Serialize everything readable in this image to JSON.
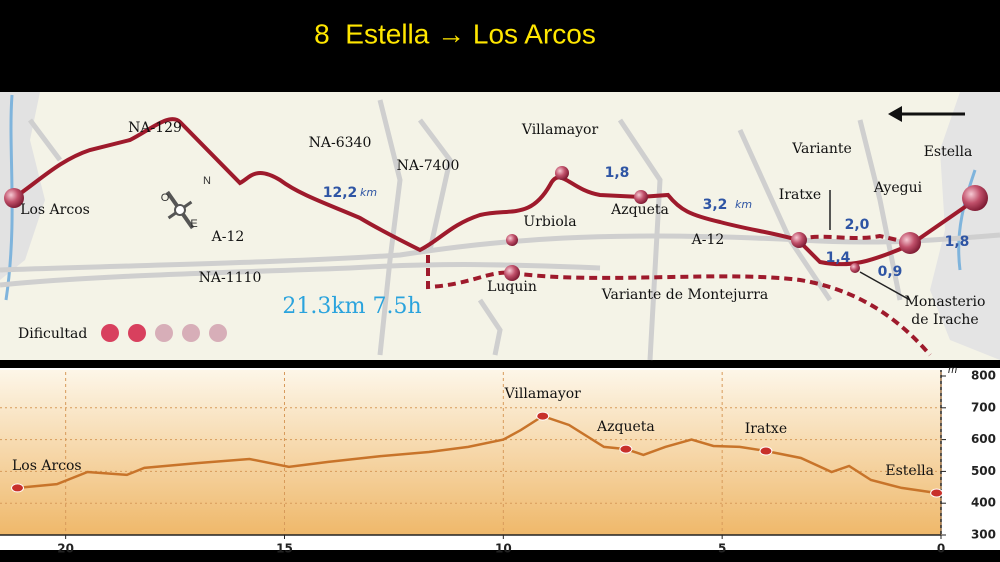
{
  "header": {
    "title": "8  Estella → Los Arcos"
  },
  "map": {
    "labels": [
      "NA-129",
      "NA-6340",
      "NA-7400",
      "Villamayor",
      "Variante",
      "Estella",
      "Los Arcos",
      "A-12",
      "Urbiola",
      "Azqueta",
      "A-12",
      "Iratxe",
      "Ayegui",
      "NA-1110",
      "Luquin",
      "Variante de Montejurra",
      "Monasterio",
      "de Irache"
    ],
    "distances": [
      {
        "text": "12,2",
        "unit": "km"
      },
      {
        "text": "1,8"
      },
      {
        "text": "3,2",
        "unit": "km"
      },
      {
        "text": "2,0"
      },
      {
        "text": "1,8"
      },
      {
        "text": "1,4"
      },
      {
        "text": "0,9"
      }
    ],
    "summary": "21.3km 7.5h",
    "difficulty_label": "Dificultad",
    "compass": [
      "N",
      "O",
      "E"
    ]
  },
  "chart_data": {
    "type": "line",
    "color": "#c8742a",
    "y_unit": "m",
    "x": [
      21.1,
      20.2,
      19.5,
      18.6,
      18.2,
      17.0,
      15.8,
      14.9,
      14.0,
      12.8,
      11.7,
      10.8,
      10.0,
      9.6,
      9.1,
      8.5,
      7.7,
      7.2,
      6.8,
      6.3,
      5.7,
      5.2,
      4.6,
      4.0,
      3.2,
      2.5,
      2.1,
      1.6,
      0.9,
      0.1
    ],
    "values": [
      448,
      460,
      498,
      489,
      511,
      526,
      539,
      514,
      530,
      548,
      561,
      577,
      600,
      630,
      674,
      646,
      577,
      570,
      552,
      577,
      600,
      580,
      577,
      564,
      542,
      498,
      517,
      473,
      448,
      432
    ],
    "markers": [
      {
        "name": "Los Arcos",
        "x": 21.1,
        "value": 448
      },
      {
        "name": "Villamayor",
        "x": 9.1,
        "value": 674
      },
      {
        "name": "Azqueta",
        "x": 7.2,
        "value": 570
      },
      {
        "name": "Iratxe",
        "x": 4.0,
        "value": 564
      },
      {
        "name": "Estella",
        "x": 0.1,
        "value": 432
      }
    ],
    "xlim": [
      21.5,
      0
    ],
    "xticks": [
      20,
      15,
      10,
      5,
      0
    ],
    "ylim": [
      300,
      800
    ],
    "yticks": [
      300,
      400,
      500,
      600,
      700,
      800
    ],
    "grid": true
  }
}
